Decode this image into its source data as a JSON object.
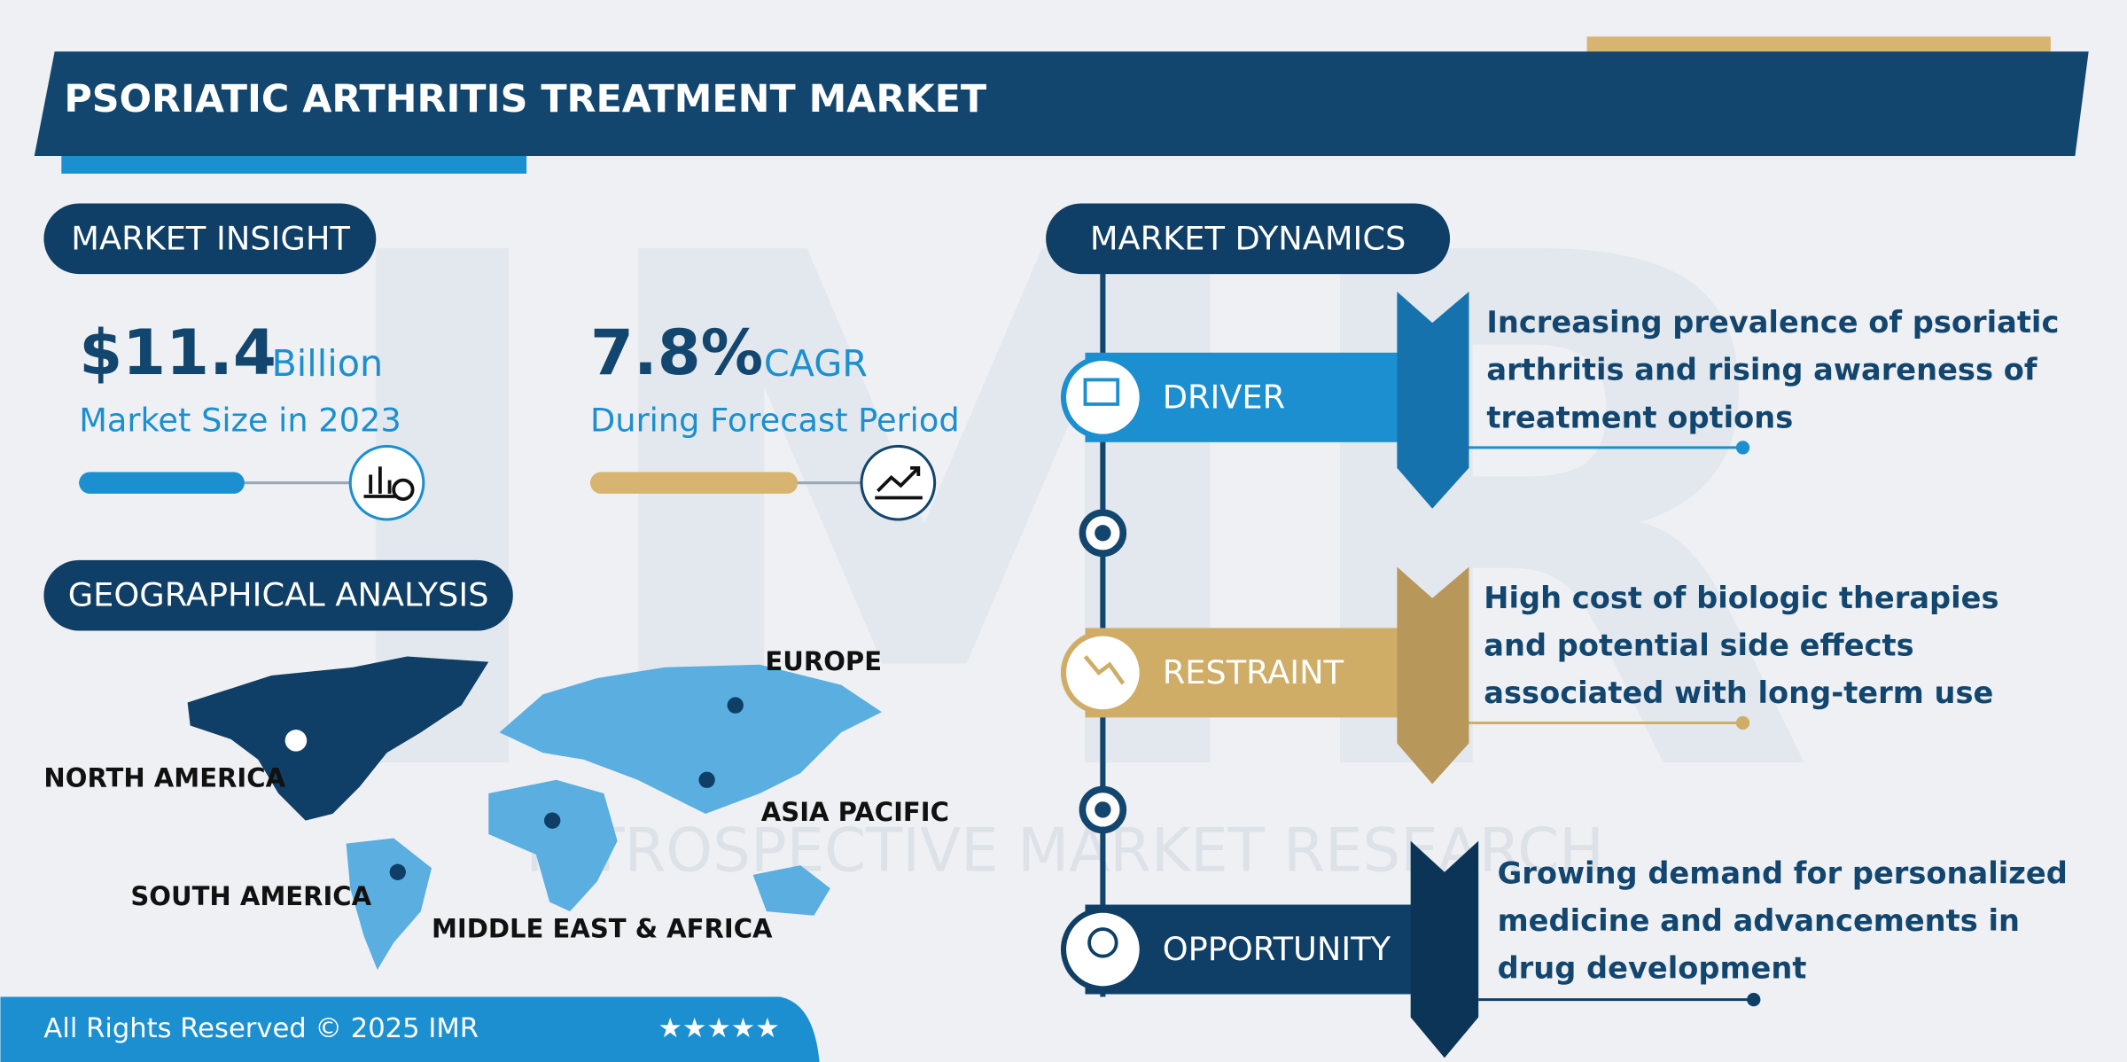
{
  "header": {
    "title": "PSORIATIC ARTHRITIS TREATMENT MARKET"
  },
  "watermark": {
    "logo": "IMR",
    "text": "INTROSPECTIVE MARKET RESEARCH"
  },
  "market_insight": {
    "heading": "MARKET INSIGHT",
    "size_value": "$11.4",
    "size_unit": "Billion",
    "size_label": "Market Size in 2023",
    "cagr_value": "7.8%",
    "cagr_unit": "CAGR",
    "cagr_label": "During Forecast Period"
  },
  "geographical_analysis": {
    "heading": "GEOGRAPHICAL ANALYSIS",
    "regions": [
      "NORTH AMERICA",
      "SOUTH AMERICA",
      "MIDDLE EAST & AFRICA",
      "ASIA PACIFIC",
      "EUROPE"
    ]
  },
  "market_dynamics": {
    "heading": "MARKET DYNAMICS",
    "items": [
      {
        "label": "DRIVER",
        "lines": [
          "Increasing prevalence of psoriatic",
          "arthritis and rising awareness of",
          "treatment options"
        ]
      },
      {
        "label": "RESTRAINT",
        "lines": [
          "High cost of biologic therapies",
          "and potential side effects",
          "associated with long-term use"
        ]
      },
      {
        "label": "OPPORTUNITY",
        "lines": [
          "Growing demand for personalized",
          "medicine and advancements in",
          "drug development"
        ]
      }
    ]
  },
  "footer": {
    "text": "All Rights Reserved © 2025 IMR",
    "rating": "★★★★★"
  }
}
